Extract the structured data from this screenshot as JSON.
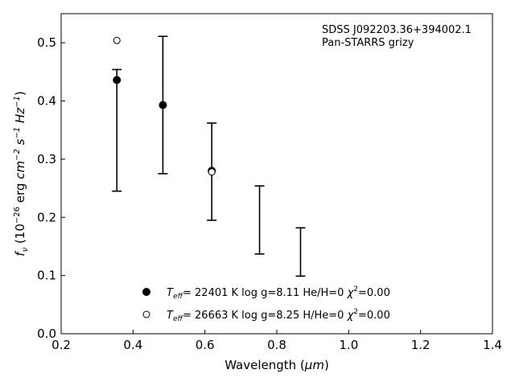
{
  "chart_data": {
    "type": "scatter",
    "xlabel_main": "Wavelength (",
    "xlabel_unit": "μm",
    "xlabel_end": ")",
    "ylabel": {
      "f": "f",
      "nu": "ν",
      "open": " (10",
      "exp1": "−26",
      "erg": " erg ",
      "cm": "cm",
      "exp2": "−2",
      "s": " s",
      "exp3": "−1",
      "hz": " Hz",
      "exp4": "−1",
      "close": ")"
    },
    "xlim": [
      0.2,
      1.4
    ],
    "ylim": [
      0.0,
      0.55
    ],
    "x_ticks": [
      "0.2",
      "0.4",
      "0.6",
      "0.8",
      "1.0",
      "1.2",
      "1.4"
    ],
    "y_ticks": [
      "0.0",
      "0.1",
      "0.2",
      "0.3",
      "0.4",
      "0.5"
    ],
    "annotation": [
      "SDSS J092203.36+394002.1",
      "Pan-STARRS grizy"
    ],
    "observed": [
      {
        "x": 0.355,
        "low": 0.245,
        "high": 0.454
      },
      {
        "x": 0.483,
        "low": 0.275,
        "high": 0.511
      },
      {
        "x": 0.619,
        "low": 0.195,
        "high": 0.362
      },
      {
        "x": 0.752,
        "low": 0.137,
        "high": 0.254
      },
      {
        "x": 0.866,
        "low": 0.099,
        "high": 0.182
      }
    ],
    "series": [
      {
        "marker": "filled",
        "x": [
          0.355,
          0.483,
          0.619
        ],
        "y": [
          0.436,
          0.393,
          0.28
        ],
        "legend": {
          "T": "T",
          "Tsub": "eff",
          "params": "= 22401 K  log g=8.11  He/H=0  ",
          "chi": "χ",
          "chisup": "2",
          "chival": "=0.00"
        }
      },
      {
        "marker": "open",
        "x": [
          0.355,
          0.619
        ],
        "y": [
          0.504,
          0.278
        ],
        "legend": {
          "T": "T",
          "Tsub": "eff",
          "params": "= 26663 K  log g=8.25  H/He=0  ",
          "chi": "χ",
          "chisup": "2",
          "chival": "=0.00"
        }
      }
    ],
    "legend_position": "bottom-center",
    "grid": false
  }
}
